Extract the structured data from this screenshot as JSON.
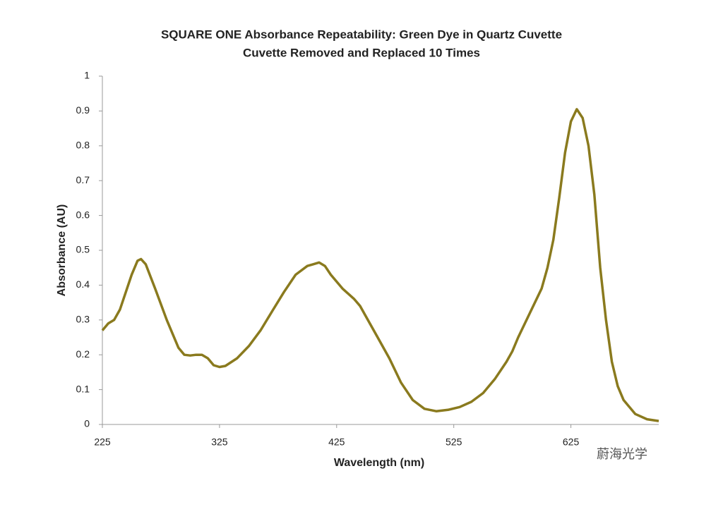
{
  "chart_data": {
    "type": "line",
    "title": "SQUARE ONE Absorbance Repeatability: Green Dye in Quartz Cuvette",
    "subtitle": "Cuvette Removed and Replaced 10 Times",
    "x_label": "Wavelength (nm)",
    "y_label": "Absorbance (AU)",
    "watermark": "蔚海光学",
    "x": [
      225,
      230,
      235,
      240,
      245,
      250,
      255,
      258,
      262,
      270,
      280,
      290,
      295,
      300,
      305,
      310,
      315,
      320,
      325,
      330,
      340,
      350,
      360,
      370,
      380,
      390,
      400,
      405,
      410,
      415,
      420,
      430,
      440,
      445,
      450,
      460,
      470,
      480,
      490,
      500,
      510,
      520,
      530,
      540,
      550,
      560,
      570,
      575,
      580,
      590,
      600,
      605,
      610,
      615,
      620,
      625,
      630,
      635,
      640,
      645,
      650,
      655,
      660,
      665,
      670,
      680,
      690,
      700
    ],
    "series": [
      {
        "name": "Green Dye",
        "color": "#8a7a1e",
        "values": [
          0.27,
          0.29,
          0.3,
          0.33,
          0.38,
          0.43,
          0.47,
          0.475,
          0.46,
          0.39,
          0.3,
          0.22,
          0.2,
          0.198,
          0.2,
          0.2,
          0.19,
          0.17,
          0.165,
          0.168,
          0.19,
          0.225,
          0.27,
          0.325,
          0.38,
          0.43,
          0.455,
          0.46,
          0.465,
          0.455,
          0.43,
          0.39,
          0.36,
          0.34,
          0.31,
          0.25,
          0.19,
          0.12,
          0.07,
          0.045,
          0.038,
          0.042,
          0.05,
          0.065,
          0.09,
          0.13,
          0.18,
          0.21,
          0.25,
          0.32,
          0.39,
          0.45,
          0.53,
          0.65,
          0.78,
          0.87,
          0.905,
          0.88,
          0.8,
          0.66,
          0.45,
          0.3,
          0.18,
          0.11,
          0.07,
          0.03,
          0.015,
          0.01
        ]
      }
    ],
    "xlim": [
      225,
      700
    ],
    "xticks": [
      225,
      325,
      425,
      525,
      625
    ],
    "ylim": [
      0,
      1
    ],
    "yticks": [
      0,
      0.1,
      0.2,
      0.3,
      0.4,
      0.5,
      0.6,
      0.7,
      0.8,
      0.9,
      1
    ]
  }
}
